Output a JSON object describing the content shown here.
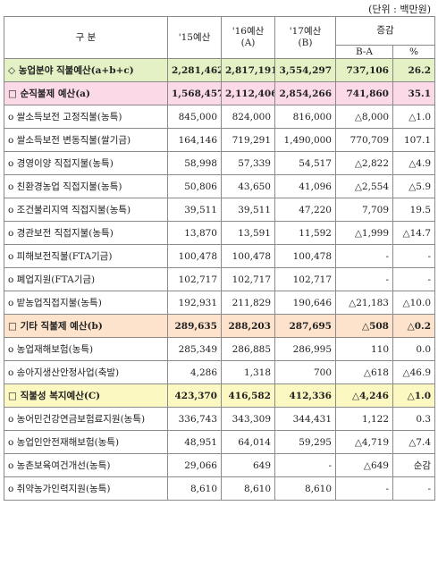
{
  "unit_note": "(단위 : 백만원)",
  "headers": {
    "category": "구        분",
    "y15": "'15예산",
    "y16": "'16예산",
    "y16_sub": "(A)",
    "y17": "'17예산",
    "y17_sub": "(B)",
    "diff": "증감",
    "diff_amount": "B-A",
    "diff_pct": "%"
  },
  "rows": [
    {
      "type": "total",
      "label": "◇ 농업분야  직불예산(a+b+c)",
      "y15": "2,281,462",
      "y16": "2,817,191",
      "y17": "3,554,297",
      "diff": "737,106",
      "pct": "26.2"
    },
    {
      "type": "cat-pink",
      "label": "□ 순직불제 예산(a)",
      "y15": "1,568,457",
      "y16": "2,112,406",
      "y17": "2,854,266",
      "diff": "741,860",
      "pct": "35.1"
    },
    {
      "type": "item",
      "label": "o  쌀소득보전 고정직불(농특)",
      "y15": "845,000",
      "y16": "824,000",
      "y17": "816,000",
      "diff": "△8,000",
      "pct": "△1.0"
    },
    {
      "type": "item",
      "label": "o  쌀소득보전 변동직불(쌀기금)",
      "y15": "164,146",
      "y16": "719,291",
      "y17": "1,490,000",
      "diff": "770,709",
      "pct": "107.1"
    },
    {
      "type": "item",
      "label": "o  경영이양 직접지불(농특)",
      "y15": "58,998",
      "y16": "57,339",
      "y17": "54,517",
      "diff": "△2,822",
      "pct": "△4.9"
    },
    {
      "type": "item",
      "label": "o  친환경농업 직접지불(농특)",
      "y15": "50,806",
      "y16": "43,650",
      "y17": "41,096",
      "diff": "△2,554",
      "pct": "△5.9"
    },
    {
      "type": "item",
      "label": "o  조건불리지역 직접지불(농특)",
      "y15": "39,511",
      "y16": "39,511",
      "y17": "47,220",
      "diff": "7,709",
      "pct": "19.5"
    },
    {
      "type": "item",
      "label": "o  경관보전 직접지불(농특)",
      "y15": "13,870",
      "y16": "13,591",
      "y17": "11,592",
      "diff": "△1,999",
      "pct": "△14.7"
    },
    {
      "type": "item",
      "label": "o  피해보전직불(FTA기금)",
      "y15": "100,478",
      "y16": "100,478",
      "y17": "100,478",
      "diff": "-",
      "pct": "-"
    },
    {
      "type": "item",
      "label": "o  폐업지원(FTA기금)",
      "y15": "102,717",
      "y16": "102,717",
      "y17": "102,717",
      "diff": "-",
      "pct": "-"
    },
    {
      "type": "item",
      "label": "o  밭농업직접지불(농특)",
      "y15": "192,931",
      "y16": "211,829",
      "y17": "190,646",
      "diff": "△21,183",
      "pct": "△10.0"
    },
    {
      "type": "cat-orange",
      "label": "□ 기타 직불제 예산(b)",
      "y15": "289,635",
      "y16": "288,203",
      "y17": "287,695",
      "diff": "△508",
      "pct": "△0.2"
    },
    {
      "type": "item",
      "label": "o  농업재해보험(농특)",
      "y15": "285,349",
      "y16": "286,885",
      "y17": "286,995",
      "diff": "110",
      "pct": "0.0"
    },
    {
      "type": "item",
      "label": "o  송아지생산안정사업(축발)",
      "y15": "4,286",
      "y16": "1,318",
      "y17": "700",
      "diff": "△618",
      "pct": "△46.9"
    },
    {
      "type": "cat-yellow",
      "label": "□ 직불성 복지예산(C)",
      "y15": "423,370",
      "y16": "416,582",
      "y17": "412,336",
      "diff": "△4,246",
      "pct": "△1.0"
    },
    {
      "type": "item",
      "label": "o  농어민건강연금보험료지원(농특)",
      "y15": "336,743",
      "y16": "343,309",
      "y17": "344,431",
      "diff": "1,122",
      "pct": "0.3"
    },
    {
      "type": "item",
      "label": "o  농업인안전재해보험(농특)",
      "y15": "48,951",
      "y16": "64,014",
      "y17": "59,295",
      "diff": "△4,719",
      "pct": "△7.4"
    },
    {
      "type": "item",
      "label": "o  농촌보육여건개선(농특)",
      "y15": "29,066",
      "y16": "649",
      "y17": "-",
      "diff": "△649",
      "pct": "순감"
    },
    {
      "type": "item",
      "label": "o  취약농가인력지원(농특)",
      "y15": "8,610",
      "y16": "8,610",
      "y17": "8,610",
      "diff": "-",
      "pct": "-"
    }
  ]
}
